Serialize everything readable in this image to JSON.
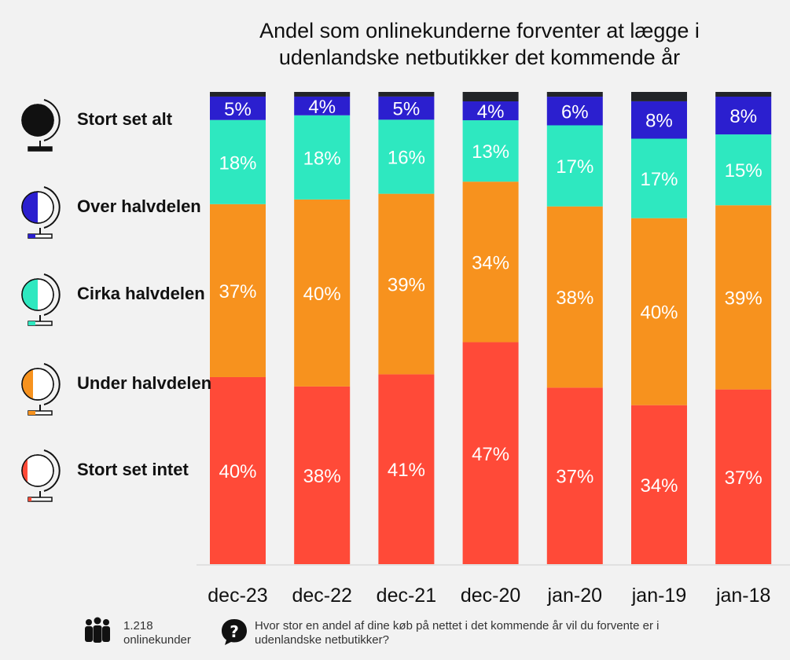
{
  "chart_data": {
    "type": "bar",
    "stacked": true,
    "title_lines": [
      "Andel som onlinekunderne forventer at lægge i",
      "udenlandske netbutikker det kommende år"
    ],
    "categories": [
      "dec-23",
      "dec-22",
      "dec-21",
      "dec-20",
      "jan-20",
      "jan-19",
      "jan-18"
    ],
    "ylim": [
      0,
      100
    ],
    "grid": false,
    "legend_position": "left",
    "series": [
      {
        "name": "Stort set intet",
        "color": "#ff4a38",
        "values": [
          40,
          38,
          41,
          47,
          37,
          34,
          37
        ],
        "labels": [
          "40%",
          "38%",
          "41%",
          "47%",
          "37%",
          "34%",
          "37%"
        ]
      },
      {
        "name": "Under halvdelen",
        "color": "#f7921e",
        "values": [
          37,
          40,
          39,
          34,
          38,
          40,
          39
        ],
        "labels": [
          "37%",
          "40%",
          "39%",
          "34%",
          "38%",
          "40%",
          "39%"
        ]
      },
      {
        "name": "Cirka halvdelen",
        "color": "#2ee8c0",
        "values": [
          18,
          18,
          16,
          13,
          17,
          17,
          15
        ],
        "labels": [
          "18%",
          "18%",
          "16%",
          "13%",
          "17%",
          "17%",
          "15%"
        ]
      },
      {
        "name": "Over halvdelen",
        "color": "#2b1fcf",
        "values": [
          5,
          4,
          5,
          4,
          6,
          8,
          8
        ],
        "labels": [
          "5%",
          "4%",
          "5%",
          "4%",
          "6%",
          "8%",
          "8%"
        ]
      },
      {
        "name": "Stort set alt",
        "color": "#222428",
        "values": [
          1,
          1,
          1,
          2,
          1,
          2,
          1
        ],
        "labels": [
          "",
          "",
          "",
          "",
          "",
          "",
          ""
        ]
      }
    ]
  },
  "legend": [
    {
      "label": "Stort set alt",
      "color": "#111111",
      "fill_kind": "full"
    },
    {
      "label": "Over halvdelen",
      "color": "#2b1fcf",
      "fill_kind": "half"
    },
    {
      "label": "Cirka halvdelen",
      "color": "#2ee8c0",
      "fill_kind": "half"
    },
    {
      "label": "Under halvdelen",
      "color": "#f7921e",
      "fill_kind": "quarter"
    },
    {
      "label": "Stort set intet",
      "color": "#ff4a38",
      "fill_kind": "sliver"
    }
  ],
  "footer": {
    "count_line1": "1.218",
    "count_line2": "onlinekunder",
    "question_line1": "Hvor stor en andel af dine køb på nettet i det kommende år vil du forvente er i",
    "question_line2": "udenlandske netbutikker?",
    "people_icon": "people-icon",
    "question_icon": "question-bubble-icon"
  }
}
